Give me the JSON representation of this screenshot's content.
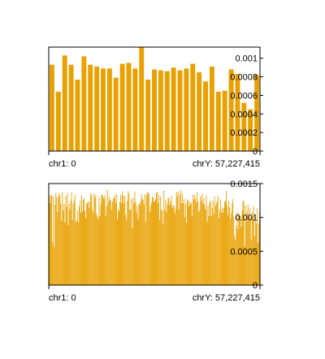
{
  "chart_data": [
    {
      "type": "bar",
      "bar_color": "#e8a100",
      "x_start_label": "chr1: 0",
      "x_end_label": "chrY: 57,227,415",
      "ylim": [
        0,
        0.00112
      ],
      "y_ticks": [
        {
          "value": 0,
          "label": "0"
        },
        {
          "value": 0.0002,
          "label": "0.0002"
        },
        {
          "value": 0.0004,
          "label": "0.0004"
        },
        {
          "value": 0.0006,
          "label": "0.0006"
        },
        {
          "value": 0.0008,
          "label": "0.0008"
        },
        {
          "value": 0.001,
          "label": "0.001"
        }
      ],
      "values": [
        0.00093,
        0.00064,
        0.00103,
        0.00093,
        0.00077,
        0.00102,
        0.00093,
        0.00091,
        0.00089,
        0.00089,
        0.00079,
        0.00094,
        0.00095,
        0.00089,
        0.00112,
        0.00077,
        0.00088,
        0.00087,
        0.00086,
        0.0009,
        0.00087,
        0.00089,
        0.00094,
        0.00085,
        0.00075,
        0.00091,
        0.00064,
        0.00065,
        0.00088,
        0.00083,
        0.00052,
        0.00045,
        0.00082
      ]
    },
    {
      "type": "bar",
      "bar_color": "#e8a100",
      "x_start_label": "chr1: 0",
      "x_end_label": "chrY: 57,227,415",
      "ylim": [
        0,
        0.0015
      ],
      "y_ticks": [
        {
          "value": 0,
          "label": "0"
        },
        {
          "value": 0.0005,
          "label": "0.0005"
        },
        {
          "value": 0.001,
          "label": "0.001"
        },
        {
          "value": 0.0015,
          "label": "0.0015"
        }
      ],
      "values": [
        0.00132,
        0.00121,
        0.00132,
        0.00134,
        0.00063,
        0.00131,
        0.00056,
        0.00119,
        0.00136,
        0.0013,
        0.00108,
        0.0013,
        0.00136,
        0.00133,
        0.0012,
        0.00095,
        0.00137,
        0.0011,
        0.0012,
        0.00092,
        0.00132,
        0.00116,
        0.00136,
        0.00089,
        0.0012,
        0.00112,
        0.00125,
        0.00137,
        0.00096,
        0.0012,
        0.00125,
        0.00133,
        0.00093,
        0.00096,
        0.0011,
        0.00093,
        0.00116,
        0.00125,
        0.00107,
        0.00133,
        0.00109,
        0.00126,
        0.00128,
        0.0011,
        0.00099,
        0.00121,
        0.00121,
        0.00124,
        0.00114,
        0.00123,
        0.00136,
        0.00133,
        0.00112,
        0.00107,
        0.00135,
        0.00129,
        0.00133,
        0.00105,
        0.00102,
        0.00097,
        0.0013,
        0.00102,
        0.00119,
        0.00133,
        0.00134,
        0.0013,
        0.00127,
        0.00133,
        0.00102,
        0.00116,
        0.00141,
        0.00121,
        0.00131,
        0.00126,
        0.00125,
        0.00112,
        0.00123,
        0.00128,
        0.00129,
        0.00133,
        0.00122,
        0.00134,
        0.00097,
        0.00112,
        0.00109,
        0.00123,
        0.00133,
        0.00121,
        0.00138,
        0.00132,
        0.00121,
        0.00132,
        0.00105,
        0.00097,
        0.00124,
        0.00139,
        0.00135,
        0.00111,
        0.00112,
        0.00127,
        0.00084,
        0.00129,
        0.0012,
        0.00138,
        0.00123,
        0.00107,
        0.00117,
        0.00097,
        0.00121,
        0.00119,
        0.00124,
        0.00134,
        0.00128,
        0.00126,
        0.0012,
        0.00134,
        0.00093,
        0.00133,
        0.00138,
        0.00135,
        0.00136,
        0.00108,
        0.00117,
        0.00122,
        0.00131,
        0.00129,
        0.00123,
        0.00124,
        0.00127,
        0.00136,
        0.00138,
        0.00121,
        0.00133,
        0.00096,
        0.00131,
        0.00112,
        0.0011,
        0.0009,
        0.0014,
        0.00111,
        0.00125,
        0.00108,
        0.00119,
        0.00129,
        0.00129,
        0.00118,
        0.00123,
        0.00132,
        0.00114,
        0.00118,
        0.00117,
        0.00106,
        0.00113,
        0.00138,
        0.00131,
        0.00138,
        0.00112,
        0.00133,
        0.0014,
        0.00121,
        0.00136,
        0.00121,
        0.00127,
        0.00101,
        0.00121,
        0.00092,
        0.00127,
        0.00125,
        0.00116,
        0.00123,
        0.00119,
        0.00122,
        0.00102,
        0.00134,
        0.00126,
        0.00133,
        0.00128,
        0.00122,
        0.00137,
        0.00124,
        0.00108,
        0.00111,
        0.00131,
        0.00125,
        0.00135,
        0.00121,
        0.00129,
        0.00118,
        0.00112,
        0.00132,
        0.00093,
        0.00117,
        0.00102,
        0.00122,
        0.00126,
        0.00102,
        0.00114,
        0.00124,
        0.00105,
        0.00131,
        0.00117,
        0.00121,
        0.00124,
        0.00132,
        0.00099,
        0.00111,
        0.00127,
        0.00107,
        0.00115,
        0.00107,
        0.00114,
        0.00123,
        0.00125,
        0.00139,
        0.00117,
        0.00103,
        0.00125,
        0.00115,
        0.00098,
        0.00106,
        0.00121,
        0.00127,
        0.00101,
        0.00072,
        0.00067,
        0.00088,
        0.00108,
        0.00083,
        0.00106,
        0.00102,
        0.00103,
        0.00086,
        0.0011,
        0.00124,
        0.00124,
        0.00057,
        0.00117,
        0.00094,
        0.00109,
        0.00119,
        0.00095,
        0.00114,
        0.00101,
        0.00067,
        0.00108,
        0.00102,
        0.00116,
        0.00072,
        0.00095,
        0.00091,
        0.00113,
        0.00062,
        0.00091,
        0.00108
      ]
    }
  ]
}
